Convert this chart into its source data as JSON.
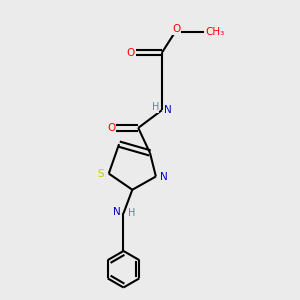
{
  "bg_color": "#ebebeb",
  "bond_color": "#000000",
  "atom_colors": {
    "O": "#ff0000",
    "N": "#0000cc",
    "S": "#cccc00",
    "C": "#000000",
    "H": "#4a9090"
  },
  "fig_size": [
    3.0,
    3.0
  ],
  "dpi": 100,
  "bond_lw": 1.5,
  "font_size": 7.5
}
